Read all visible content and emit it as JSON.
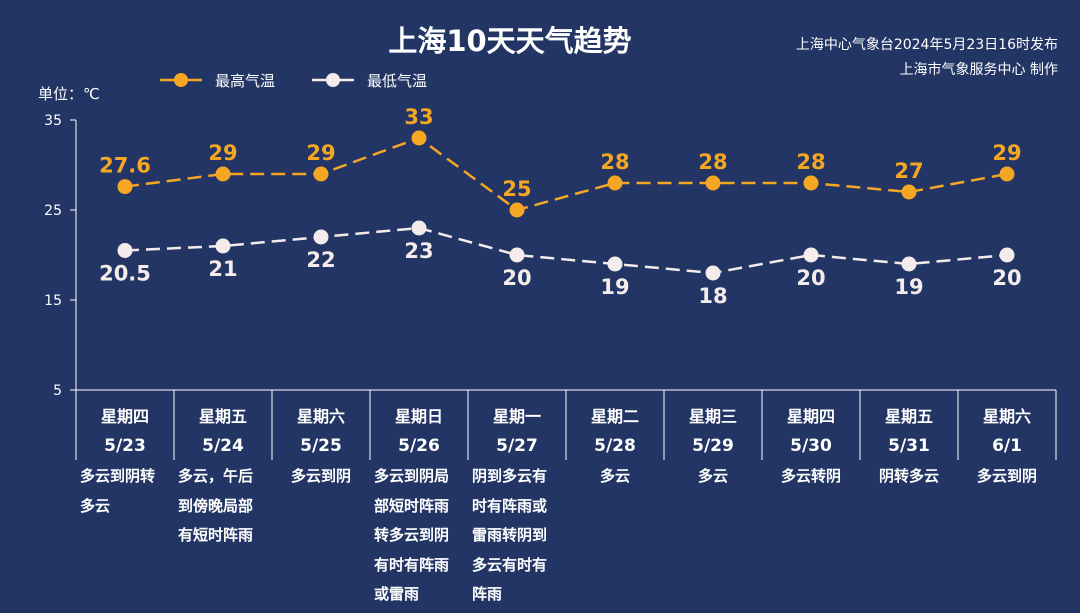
{
  "title": "上海10天天气趋势",
  "issuer_line1": "上海中心气象台2024年5月23日16时发布",
  "issuer_line2": "上海市气象服务中心 制作",
  "colors": {
    "background": "#223564",
    "high": "#f5a623",
    "low": "#f4ecea",
    "axis": "#ffffff"
  },
  "chart_data": {
    "type": "line",
    "unit_label": "单位：℃",
    "ylim": [
      5,
      35
    ],
    "yticks": [
      "35",
      "25",
      "15",
      "5"
    ],
    "categories": [
      {
        "weekday": "星期四",
        "date": "5/23"
      },
      {
        "weekday": "星期五",
        "date": "5/24"
      },
      {
        "weekday": "星期六",
        "date": "5/25"
      },
      {
        "weekday": "星期日",
        "date": "5/26"
      },
      {
        "weekday": "星期一",
        "date": "5/27"
      },
      {
        "weekday": "星期二",
        "date": "5/28"
      },
      {
        "weekday": "星期三",
        "date": "5/29"
      },
      {
        "weekday": "星期四",
        "date": "5/30"
      },
      {
        "weekday": "星期五",
        "date": "5/31"
      },
      {
        "weekday": "星期六",
        "date": "6/1"
      }
    ],
    "series": [
      {
        "name": "最高气温",
        "values": [
          27.6,
          29,
          29,
          33,
          25,
          28,
          28,
          28,
          27,
          29
        ],
        "labels": [
          "27.6",
          "29",
          "29",
          "33",
          "25",
          "28",
          "28",
          "28",
          "27",
          "29"
        ]
      },
      {
        "name": "最低气温",
        "values": [
          20.5,
          21,
          22,
          23,
          20,
          19,
          18,
          20,
          19,
          20
        ],
        "labels": [
          "20.5",
          "21",
          "22",
          "23",
          "20",
          "19",
          "18",
          "20",
          "19",
          "20"
        ]
      }
    ],
    "weather": [
      [
        "多云到阴转",
        "多云"
      ],
      [
        "多云，午后",
        "到傍晚局部",
        "有短时阵雨"
      ],
      [
        "多云到阴"
      ],
      [
        "多云到阴局",
        "部短时阵雨",
        "转多云到阴",
        "有时有阵雨",
        "或雷雨"
      ],
      [
        "阴到多云有",
        "时有阵雨或",
        "雷雨转阴到",
        "多云有时有",
        "阵雨"
      ],
      [
        "多云"
      ],
      [
        "多云"
      ],
      [
        "多云转阴"
      ],
      [
        "阴转多云"
      ],
      [
        "多云到阴"
      ]
    ],
    "legend_position": "top-left",
    "grid": false
  }
}
